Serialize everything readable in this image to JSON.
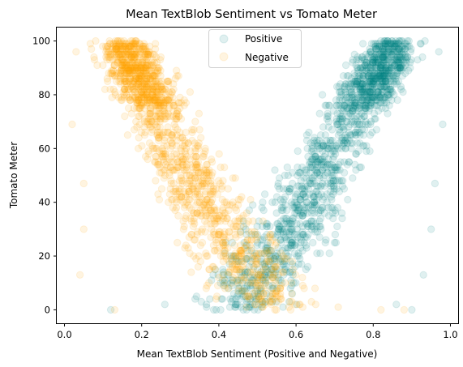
{
  "chart_data": {
    "type": "scatter",
    "title": "Mean TextBlob Sentiment vs Tomato Meter",
    "xlabel": "Mean TextBlob Sentiment (Positive and Negative)",
    "ylabel": "Tomato Meter",
    "xlim": [
      -0.02,
      1.02
    ],
    "ylim": [
      -5,
      105
    ],
    "xticks": [
      0.0,
      0.2,
      0.4,
      0.6,
      0.8,
      1.0
    ],
    "xtick_labels": [
      "0.0",
      "0.2",
      "0.4",
      "0.6",
      "0.8",
      "1.0"
    ],
    "yticks": [
      0,
      20,
      40,
      60,
      80,
      100
    ],
    "ytick_labels": [
      "0",
      "20",
      "40",
      "60",
      "80",
      "100"
    ],
    "grid": false,
    "legend_position": "top-center",
    "marker_alpha": 0.12,
    "series": [
      {
        "name": "Positive",
        "color": "#008080",
        "trend_points": [
          {
            "x": 0.85,
            "y": 100
          },
          {
            "x": 0.82,
            "y": 90
          },
          {
            "x": 0.78,
            "y": 80
          },
          {
            "x": 0.74,
            "y": 70
          },
          {
            "x": 0.7,
            "y": 60
          },
          {
            "x": 0.66,
            "y": 50
          },
          {
            "x": 0.62,
            "y": 40
          },
          {
            "x": 0.58,
            "y": 30
          },
          {
            "x": 0.54,
            "y": 20
          },
          {
            "x": 0.5,
            "y": 10
          },
          {
            "x": 0.46,
            "y": 0
          }
        ],
        "outliers": [
          {
            "x": 0.12,
            "y": 0
          },
          {
            "x": 0.98,
            "y": 69
          },
          {
            "x": 0.96,
            "y": 47
          },
          {
            "x": 0.95,
            "y": 30
          },
          {
            "x": 0.93,
            "y": 13
          },
          {
            "x": 0.9,
            "y": 0
          },
          {
            "x": 0.86,
            "y": 2
          },
          {
            "x": 0.26,
            "y": 2
          },
          {
            "x": 0.97,
            "y": 96
          }
        ]
      },
      {
        "name": "Negative",
        "color": "#FFA500",
        "trend_points": [
          {
            "x": 0.15,
            "y": 100
          },
          {
            "x": 0.18,
            "y": 90
          },
          {
            "x": 0.21,
            "y": 80
          },
          {
            "x": 0.25,
            "y": 70
          },
          {
            "x": 0.29,
            "y": 60
          },
          {
            "x": 0.33,
            "y": 50
          },
          {
            "x": 0.37,
            "y": 40
          },
          {
            "x": 0.41,
            "y": 30
          },
          {
            "x": 0.45,
            "y": 20
          },
          {
            "x": 0.5,
            "y": 10
          },
          {
            "x": 0.55,
            "y": 0
          }
        ],
        "outliers": [
          {
            "x": 0.02,
            "y": 69
          },
          {
            "x": 0.03,
            "y": 96
          },
          {
            "x": 0.05,
            "y": 30
          },
          {
            "x": 0.04,
            "y": 13
          },
          {
            "x": 0.05,
            "y": 47
          },
          {
            "x": 0.4,
            "y": 12
          },
          {
            "x": 0.82,
            "y": 0
          },
          {
            "x": 0.88,
            "y": 0
          },
          {
            "x": 0.13,
            "y": 0
          }
        ]
      }
    ]
  }
}
